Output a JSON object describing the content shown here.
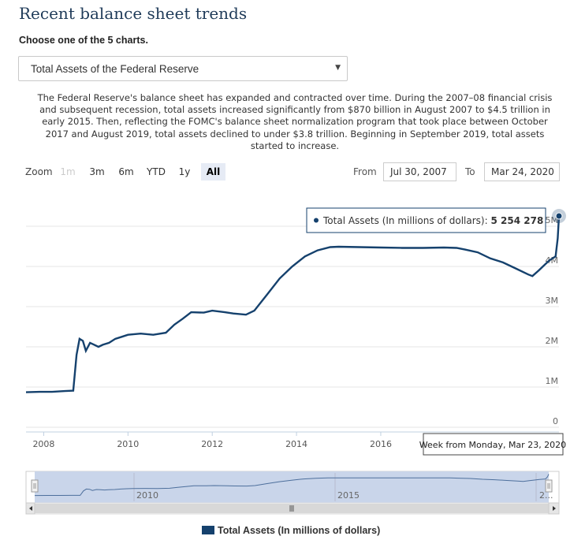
{
  "page": {
    "title": "Recent balance sheet trends",
    "subtitle": "Choose one of the 5 charts.",
    "dropdown": {
      "selected": "Total Assets of the Federal Reserve"
    },
    "description": "The Federal Reserve's balance sheet has expanded and contracted over time. During the 2007–08 financial crisis and subsequent recession, total assets increased significantly from $870 billion in August 2007 to $4.5 trillion in early 2015. Then, reflecting the FOMC's balance sheet normalization program that took place between October 2017 and August 2019, total assets declined to under $3.8 trillion. Beginning in September 2019, total assets started to increase."
  },
  "toolbar": {
    "zoom_label": "Zoom",
    "zoom_buttons": [
      "1m",
      "3m",
      "6m",
      "YTD",
      "1y",
      "All"
    ],
    "from_label": "From",
    "from_value": "Jul 30, 2007",
    "to_label": "To",
    "to_value": "Mar 24, 2020"
  },
  "tooltip": {
    "series": "Total Assets (In millions of dollars)",
    "value": "5 254 278",
    "x_label": "Week from Monday, Mar 23, 2020"
  },
  "navigator": {
    "labels": [
      "2010",
      "2015",
      "2..."
    ]
  },
  "colors": {
    "line": "#15416d",
    "navigator_fill": "#c9d5ea",
    "zoom_active": "#e6ebf5"
  },
  "chart_data": {
    "type": "line",
    "x_ticks": [
      "2008",
      "2010",
      "2012",
      "2014",
      "2016"
    ],
    "y_ticks": [
      "0",
      "1M",
      "2M",
      "3M",
      "4M",
      "5M"
    ],
    "ylim": [
      0,
      5000000
    ],
    "grid": true,
    "legend_position": "bottom",
    "series": [
      {
        "name": "Total Assets (In millions of dollars)",
        "x": [
          2007.58,
          2007.9,
          2008.2,
          2008.5,
          2008.7,
          2008.78,
          2008.85,
          2008.93,
          2009.0,
          2009.1,
          2009.2,
          2009.3,
          2009.4,
          2009.55,
          2009.7,
          2009.85,
          2010.0,
          2010.3,
          2010.6,
          2010.9,
          2011.1,
          2011.3,
          2011.5,
          2011.8,
          2012.0,
          2012.3,
          2012.5,
          2012.8,
          2013.0,
          2013.3,
          2013.6,
          2013.9,
          2014.2,
          2014.5,
          2014.8,
          2015.0,
          2015.5,
          2016.0,
          2016.5,
          2017.0,
          2017.5,
          2017.8,
          2018.0,
          2018.3,
          2018.6,
          2018.9,
          2019.2,
          2019.5,
          2019.6,
          2019.75,
          2019.9,
          2020.0,
          2020.15,
          2020.2,
          2020.23
        ],
        "y": [
          870000,
          880000,
          880000,
          900000,
          910000,
          1800000,
          2200000,
          2150000,
          1900000,
          2100000,
          2050000,
          2000000,
          2050000,
          2100000,
          2200000,
          2250000,
          2300000,
          2330000,
          2300000,
          2350000,
          2550000,
          2700000,
          2860000,
          2850000,
          2900000,
          2860000,
          2830000,
          2800000,
          2900000,
          3300000,
          3700000,
          4000000,
          4250000,
          4400000,
          4480000,
          4490000,
          4480000,
          4470000,
          4460000,
          4460000,
          4470000,
          4460000,
          4420000,
          4350000,
          4200000,
          4100000,
          3950000,
          3800000,
          3760000,
          3900000,
          4050000,
          4150000,
          4250000,
          4700000,
          5254278
        ]
      }
    ]
  }
}
